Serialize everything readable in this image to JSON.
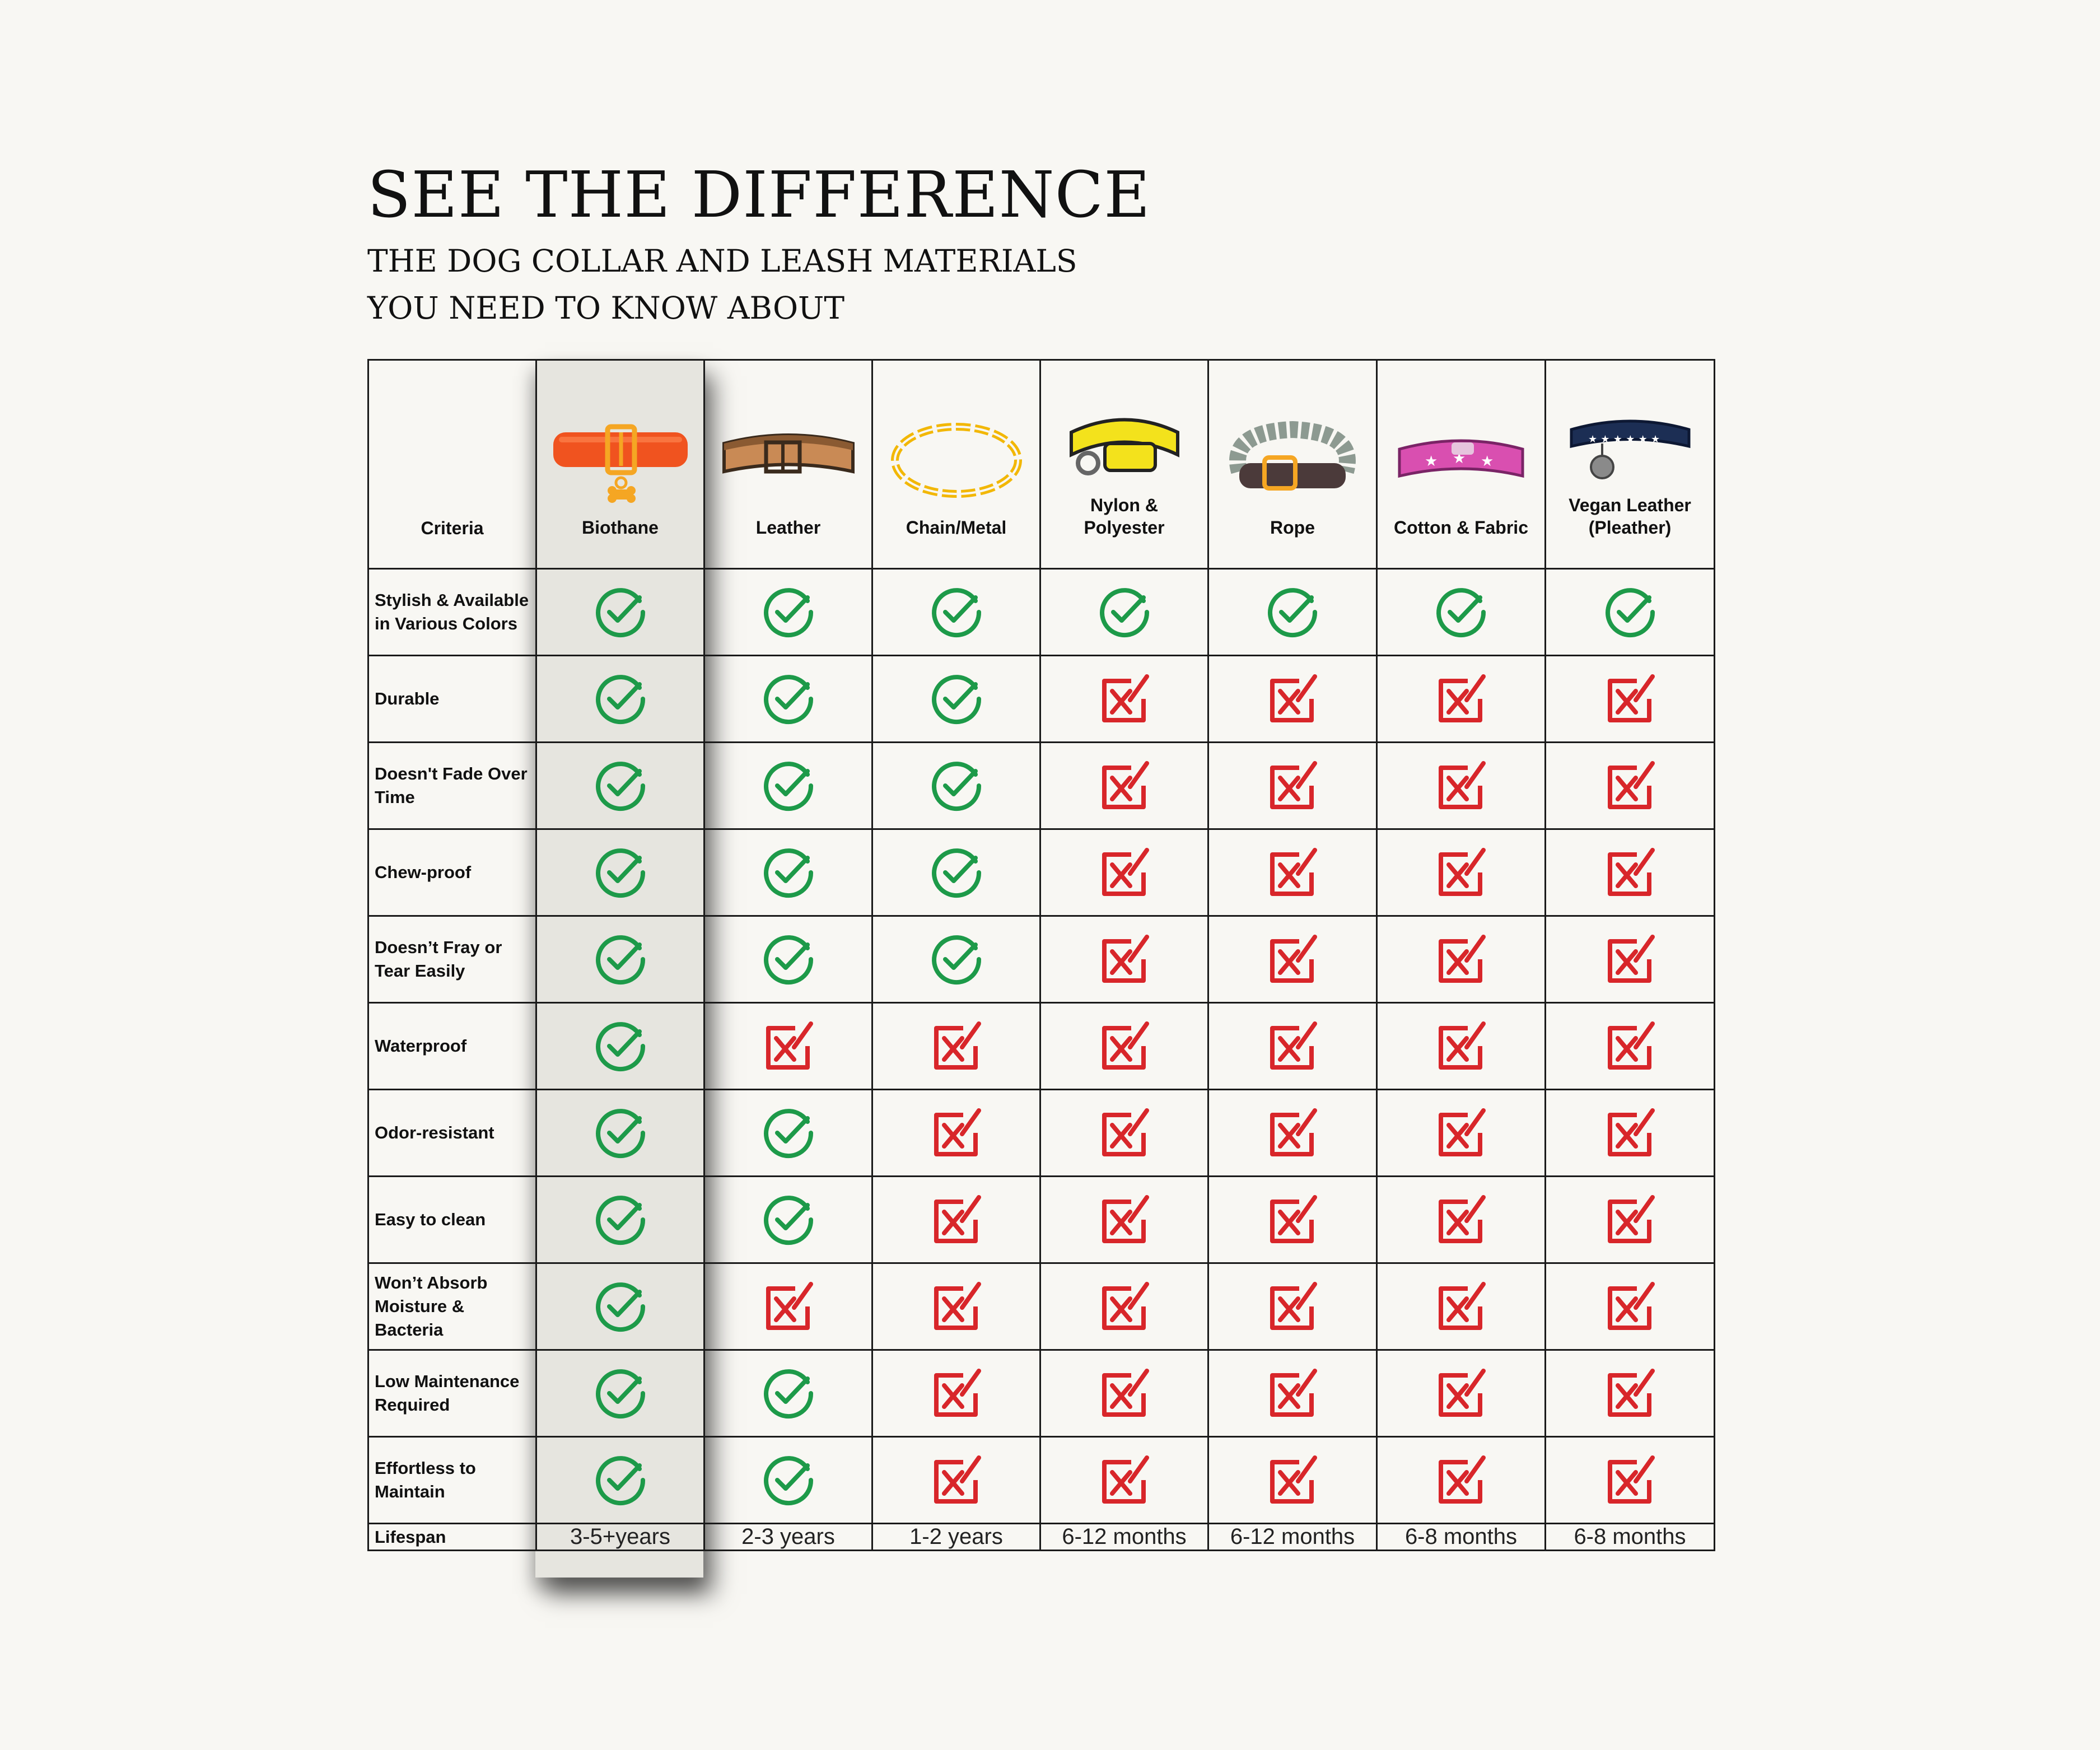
{
  "heading": {
    "title": "SEE THE DIFFERENCE",
    "subtitle_line1": "THE DOG COLLAR AND LEASH MATERIALS",
    "subtitle_line2": "YOU NEED TO KNOW ABOUT"
  },
  "colors": {
    "check": "#1d9a49",
    "cross": "#d8262a",
    "highlight": "#e6e5df",
    "background": "#f8f7f3"
  },
  "table": {
    "criteria_header": "Criteria",
    "materials": [
      {
        "name": "Biothane",
        "icon": "orange-biothane-collar-icon"
      },
      {
        "name": "Leather",
        "icon": "brown-leather-collar-icon"
      },
      {
        "name": "Chain/Metal",
        "icon": "gold-chain-collar-icon"
      },
      {
        "name": "Nylon & Polyester",
        "icon": "yellow-nylon-collar-icon"
      },
      {
        "name": "Rope",
        "icon": "rope-collar-icon"
      },
      {
        "name": "Cotton & Fabric",
        "icon": "pink-fabric-collar-icon"
      },
      {
        "name": "Vegan Leather (Pleather)",
        "icon": "navy-star-collar-icon"
      }
    ],
    "rows": [
      {
        "criterion": "Stylish & Available in Various Colors",
        "marks": [
          "check",
          "check",
          "check",
          "check",
          "check",
          "check",
          "check"
        ]
      },
      {
        "criterion": "Durable",
        "marks": [
          "check",
          "check",
          "check",
          "cross",
          "cross",
          "cross",
          "cross"
        ]
      },
      {
        "criterion": "Doesn't Fade Over Time",
        "marks": [
          "check",
          "check",
          "check",
          "cross",
          "cross",
          "cross",
          "cross"
        ]
      },
      {
        "criterion": "Chew-proof",
        "marks": [
          "check",
          "check",
          "check",
          "cross",
          "cross",
          "cross",
          "cross"
        ]
      },
      {
        "criterion": "Doesn’t Fray or Tear Easily",
        "marks": [
          "check",
          "check",
          "check",
          "cross",
          "cross",
          "cross",
          "cross"
        ]
      },
      {
        "criterion": "Waterproof",
        "marks": [
          "check",
          "cross",
          "cross",
          "cross",
          "cross",
          "cross",
          "cross"
        ]
      },
      {
        "criterion": "Odor-resistant",
        "marks": [
          "check",
          "check",
          "cross",
          "cross",
          "cross",
          "cross",
          "cross"
        ]
      },
      {
        "criterion": "Easy to clean",
        "marks": [
          "check",
          "check",
          "cross",
          "cross",
          "cross",
          "cross",
          "cross"
        ]
      },
      {
        "criterion": "Won’t Absorb Moisture & Bacteria",
        "marks": [
          "check",
          "cross",
          "cross",
          "cross",
          "cross",
          "cross",
          "cross"
        ]
      },
      {
        "criterion": "Low Maintenance Required",
        "marks": [
          "check",
          "check",
          "cross",
          "cross",
          "cross",
          "cross",
          "cross"
        ]
      },
      {
        "criterion": "Effortless to Maintain",
        "marks": [
          "check",
          "check",
          "cross",
          "cross",
          "cross",
          "cross",
          "cross"
        ]
      }
    ],
    "lifespan_label": "Lifespan",
    "lifespans": [
      "3-5+years",
      "2-3 years",
      "1-2 years",
      "6-12 months",
      "6-12 months",
      "6-8 months",
      "6-8 months"
    ]
  }
}
